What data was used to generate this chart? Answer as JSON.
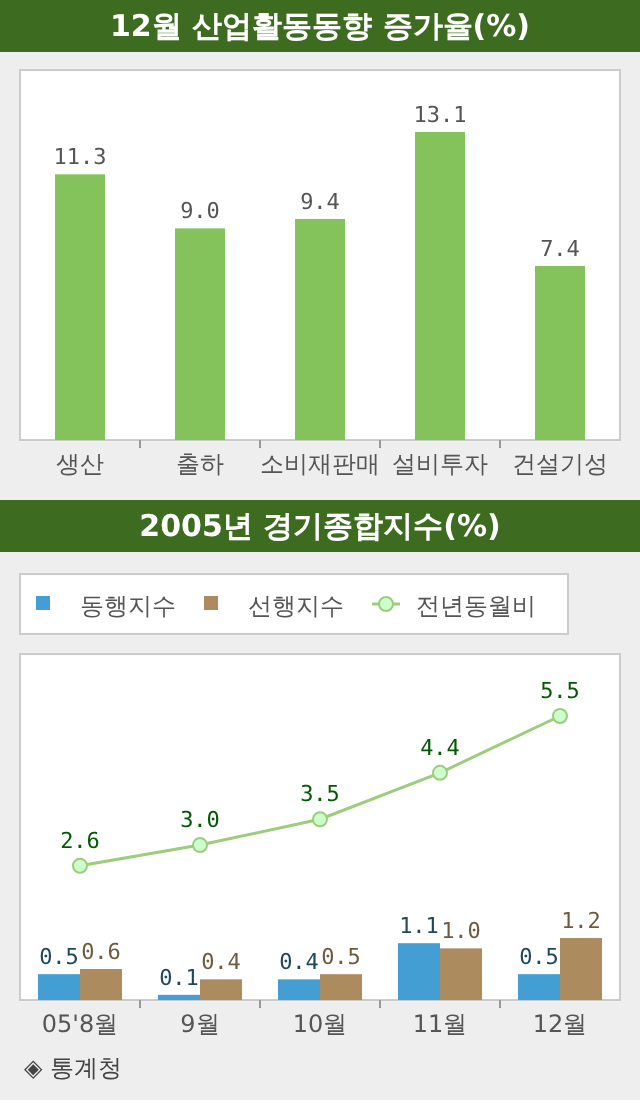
{
  "chart_data": [
    {
      "type": "bar",
      "title": "12월 산업활동동향 증가율(%)",
      "categories": [
        "생산",
        "출하",
        "소비재판매",
        "설비투자",
        "건설기성"
      ],
      "values": [
        11.3,
        9.0,
        9.4,
        13.1,
        7.4
      ],
      "value_labels": [
        "11.3",
        "9.0",
        "9.4",
        "13.1",
        "7.4"
      ],
      "color": "#84c25b"
    },
    {
      "type": "bar",
      "title": "2005년 경기종합지수(%)",
      "categories": [
        "05'8월",
        "9월",
        "10월",
        "11월",
        "12월"
      ],
      "legend": "top",
      "annotations": [
        "◈ 통계청"
      ],
      "series": [
        {
          "name": "동행지수",
          "color": "#439fd3",
          "values": [
            0.5,
            0.1,
            0.4,
            1.1,
            0.5
          ],
          "value_labels": [
            "0.5",
            "0.1",
            "0.4",
            "1.1",
            "0.5"
          ]
        },
        {
          "name": "선행지수",
          "color": "#ac8b5f",
          "values": [
            0.6,
            0.4,
            0.5,
            1.0,
            1.2
          ],
          "value_labels": [
            "0.6",
            "0.4",
            "0.5",
            "1.0",
            "1.2"
          ]
        },
        {
          "name": "전년동월비",
          "type": "line",
          "marker": "circle",
          "color": "#9ccc7c",
          "values": [
            2.6,
            3.0,
            3.5,
            4.4,
            5.5
          ],
          "value_labels": [
            "2.6",
            "3.0",
            "3.5",
            "4.4",
            "5.5"
          ]
        }
      ]
    }
  ]
}
